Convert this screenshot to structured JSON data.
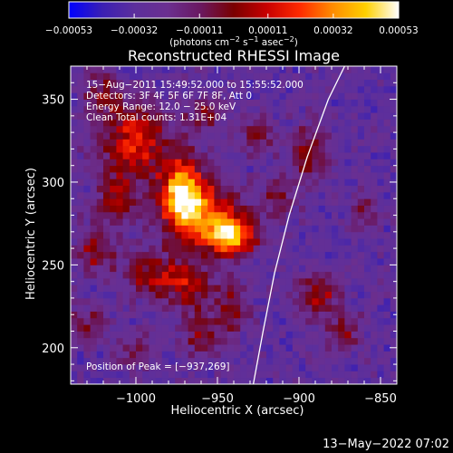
{
  "chart_data": {
    "type": "heatmap",
    "title": "Reconstructed RHESSI Image",
    "xlabel": "Heliocentric X (arcsec)",
    "ylabel": "Heliocentric Y (arcsec)",
    "xlim": [
      -1040,
      -840
    ],
    "ylim": [
      178,
      370
    ],
    "xticks": [
      -1000,
      -950,
      -900,
      -850
    ],
    "yticks": [
      200,
      250,
      300,
      350
    ],
    "xtick_labels": [
      "−1000",
      "−950",
      "−900",
      "−850"
    ],
    "ytick_labels": [
      "200",
      "250",
      "300",
      "350"
    ],
    "colorbar": {
      "units_text": "(photons cm",
      "units_sup1": "−2",
      "units_mid": " s",
      "units_sup2": "−1",
      "units_mid2": " asec",
      "units_sup3": "−2",
      "units_end": ")",
      "range": [
        -0.00053,
        0.00053
      ],
      "ticks": [
        -0.00053,
        -0.00032,
        -0.00011,
        0.00011,
        0.00032,
        0.00053
      ],
      "tick_labels": [
        "−0.00053",
        "−0.00032",
        "−0.00011",
        "0.00011",
        "0.00032",
        "0.00053"
      ],
      "colormap": [
        "#0000ff",
        "#3a1fb4",
        "#5c2f9c",
        "#6b2f90",
        "#6a1860",
        "#7a0000",
        "#c80000",
        "#ff2a00",
        "#ff8c00",
        "#ffd000",
        "#ffffff"
      ]
    },
    "info_lines": [
      "15−Aug−2011 15:49:52.000 to 15:55:52.000",
      "Detectors: 3F 4F 5F 6F 7F 8F, Att 0",
      "Energy Range: 12.0 − 25.0 keV",
      "Clean    Total counts: 1.31E+04"
    ],
    "peak_label": "Position of Peak = [−937,269]",
    "peak": [
      -937,
      269
    ],
    "limb": [
      [
        -928,
        178
      ],
      [
        -922,
        210
      ],
      [
        -915,
        245
      ],
      [
        -906,
        280
      ],
      [
        -895,
        315
      ],
      [
        -882,
        350
      ],
      [
        -872,
        370
      ]
    ],
    "sources": [
      {
        "x": -972,
        "y": 292,
        "amp": 1.15,
        "sx": 9,
        "sy": 16
      },
      {
        "x": -942,
        "y": 268,
        "amp": 1.25,
        "sx": 11,
        "sy": 9
      },
      {
        "x": -958,
        "y": 285,
        "amp": 0.7,
        "sx": 14,
        "sy": 14
      },
      {
        "x": -1000,
        "y": 325,
        "amp": 0.8,
        "sx": 14,
        "sy": 16
      },
      {
        "x": -1012,
        "y": 288,
        "amp": 0.5,
        "sx": 10,
        "sy": 12
      },
      {
        "x": -1025,
        "y": 258,
        "amp": 0.55,
        "sx": 8,
        "sy": 9
      },
      {
        "x": -992,
        "y": 245,
        "amp": 0.55,
        "sx": 12,
        "sy": 10
      },
      {
        "x": -968,
        "y": 238,
        "amp": 0.6,
        "sx": 10,
        "sy": 10
      },
      {
        "x": -960,
        "y": 208,
        "amp": 0.45,
        "sx": 9,
        "sy": 9
      },
      {
        "x": -942,
        "y": 225,
        "amp": 0.5,
        "sx": 8,
        "sy": 10
      },
      {
        "x": -925,
        "y": 328,
        "amp": 0.45,
        "sx": 8,
        "sy": 8
      },
      {
        "x": -912,
        "y": 290,
        "amp": 0.4,
        "sx": 7,
        "sy": 10
      },
      {
        "x": -893,
        "y": 318,
        "amp": 0.55,
        "sx": 8,
        "sy": 12
      },
      {
        "x": -888,
        "y": 232,
        "amp": 0.55,
        "sx": 9,
        "sy": 10
      },
      {
        "x": -873,
        "y": 210,
        "amp": 0.45,
        "sx": 8,
        "sy": 8
      },
      {
        "x": -958,
        "y": 342,
        "amp": 0.45,
        "sx": 8,
        "sy": 8
      },
      {
        "x": -1020,
        "y": 355,
        "amp": 0.45,
        "sx": 8,
        "sy": 8
      },
      {
        "x": -1030,
        "y": 215,
        "amp": 0.4,
        "sx": 8,
        "sy": 8
      },
      {
        "x": -1002,
        "y": 200,
        "amp": 0.35,
        "sx": 8,
        "sy": 8
      },
      {
        "x": -860,
        "y": 282,
        "amp": 0.35,
        "sx": 7,
        "sy": 8
      }
    ]
  },
  "footer": {
    "date": "13−May−2022 07:02"
  }
}
